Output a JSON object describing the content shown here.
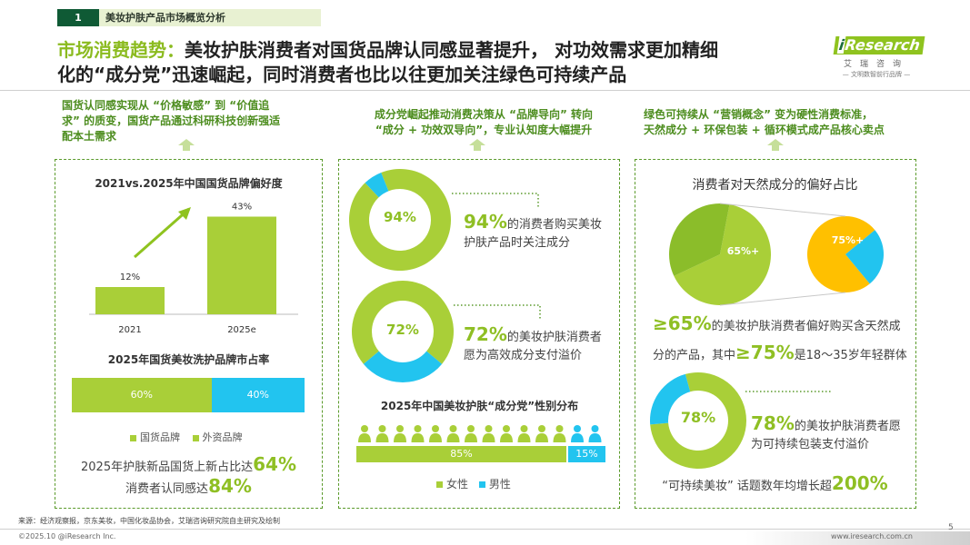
{
  "section": {
    "number": "1",
    "title": "美妆护肤产品市场概览分析"
  },
  "headline": {
    "accent": "市场消费趋势：",
    "line1": "美妆护肤消费者对国货品牌认同感显著提升， 对功效需求更加精细",
    "line2": "化的“成分党”迅速崛起，同时消费者也比以往更加关注绿色可持续产品"
  },
  "logo": {
    "i": "i",
    "name": "Research",
    "cn": "艾瑞咨询",
    "tagline": "— 文明数智前行品牌 —"
  },
  "columns": [
    {
      "caption": [
        "国货认同感实现从 “价格敏感” 到 “价值追",
        "求” 的质变，国货产品通过科研科技创新强适",
        "配本土需求"
      ]
    },
    {
      "caption": [
        "成分党崛起推动消费决策从 “品牌导向” 转向",
        "“成分 + 功效双导向”，专业认知度大幅提升"
      ]
    },
    {
      "caption": [
        "绿色可持续从 “营销概念” 变为硬性消费标准，",
        "天然成分 + 环保包装 + 循环模式成产品核心卖点"
      ]
    }
  ],
  "panel1": {
    "chart_title": "2021vs.2025年中国国货品牌偏好度",
    "share_title": "2025年国货美妆洗护品牌市占率",
    "legend": [
      "国货品牌",
      "外资品牌"
    ],
    "stat1_text": "2025年护肤新品国货上新占比达",
    "stat1_value": "64%",
    "stat2_text": "消费者认同感达",
    "stat2_value": "84%"
  },
  "panel2": {
    "donut1_label": "94%",
    "donut1_value": "94%",
    "donut1_text1": "的消费者购买美妆",
    "donut1_text2": "护肤产品时关注成分",
    "donut2_label": "72%",
    "donut2_value": "72%",
    "donut2_text1": "的美妆护肤消费者",
    "donut2_text2": "愿为高效成分支付溢价",
    "gender_title": "2025年中国美妆护肤“成分党”性别分布",
    "female_label": "85%",
    "male_label": "15%",
    "legend": [
      "女性",
      "男性"
    ]
  },
  "panel3": {
    "pie_title": "消费者对天然成分的偏好占比",
    "pie1_label": "65%+",
    "pie2_label": "75%+",
    "stat1_prefix": "≥65%",
    "stat1_mid": "的美妆护肤消费者偏好购买含天然成",
    "stat1_line2a": "分的产品，其中",
    "stat1_value2": "≥75%",
    "stat1_line2b": "是18～35岁年轻群体",
    "donut_label": "78%",
    "donut_value": "78%",
    "donut_text1": "的美妆护肤消费者愿",
    "donut_text2": "为可持续包装支付溢价",
    "topic_text": "“可持续美妆” 话题数年均增长超",
    "topic_value": "200%"
  },
  "chart_data": [
    {
      "type": "bar",
      "title": "2021vs.2025年中国国货品牌偏好度",
      "categories": [
        "2021",
        "2025e"
      ],
      "values": [
        12,
        43
      ],
      "value_labels": [
        "12%",
        "43%"
      ],
      "ylim": [
        0,
        50
      ]
    },
    {
      "type": "bar",
      "title": "2025年国货美妆洗护品牌市占率",
      "categories": [
        "2025"
      ],
      "series": [
        {
          "name": "国货品牌",
          "values": [
            60
          ],
          "label": "60%",
          "color": "#a9cf38"
        },
        {
          "name": "外资品牌",
          "values": [
            40
          ],
          "label": "40%",
          "color": "#22c4ef"
        }
      ],
      "stacked": true
    },
    {
      "type": "pie",
      "values": [
        94,
        6
      ],
      "label": "94%",
      "colors": [
        "#a9cf38",
        "#22c4ef"
      ]
    },
    {
      "type": "pie",
      "values": [
        72,
        28
      ],
      "label": "72%",
      "colors": [
        "#a9cf38",
        "#22c4ef"
      ]
    },
    {
      "type": "bar",
      "title": "2025年中国美妆护肤“成分党”性别分布",
      "categories": [
        "2025"
      ],
      "series": [
        {
          "name": "女性",
          "values": [
            85
          ],
          "label": "85%",
          "color": "#a9cf38"
        },
        {
          "name": "男性",
          "values": [
            15
          ],
          "label": "15%",
          "color": "#22c4ef"
        }
      ],
      "stacked": true
    },
    {
      "type": "pie",
      "title": "消费者对天然成分的偏好占比",
      "values": [
        65,
        35
      ],
      "label": "65%+",
      "colors": [
        "#a9cf38",
        "#8bbd2a"
      ]
    },
    {
      "type": "pie",
      "values": [
        75,
        25
      ],
      "label": "75%+",
      "colors": [
        "#ffc000",
        "#22c4ef"
      ]
    },
    {
      "type": "pie",
      "values": [
        78,
        22
      ],
      "label": "78%",
      "colors": [
        "#a9cf38",
        "#22c4ef"
      ]
    }
  ],
  "footer": {
    "source": "来源：经济观察报，京东美妆，中国化妆品协会，艾瑞咨询研究院自主研究及绘制",
    "copyright": "©2025.10 @iResearch Inc.",
    "website": "www.iresearch.com.cn",
    "page": "5"
  },
  "colors": {
    "green": "#a9cf38",
    "cyan": "#22c4ef",
    "dark_green": "#0f5a35",
    "yellow": "#ffc000"
  }
}
